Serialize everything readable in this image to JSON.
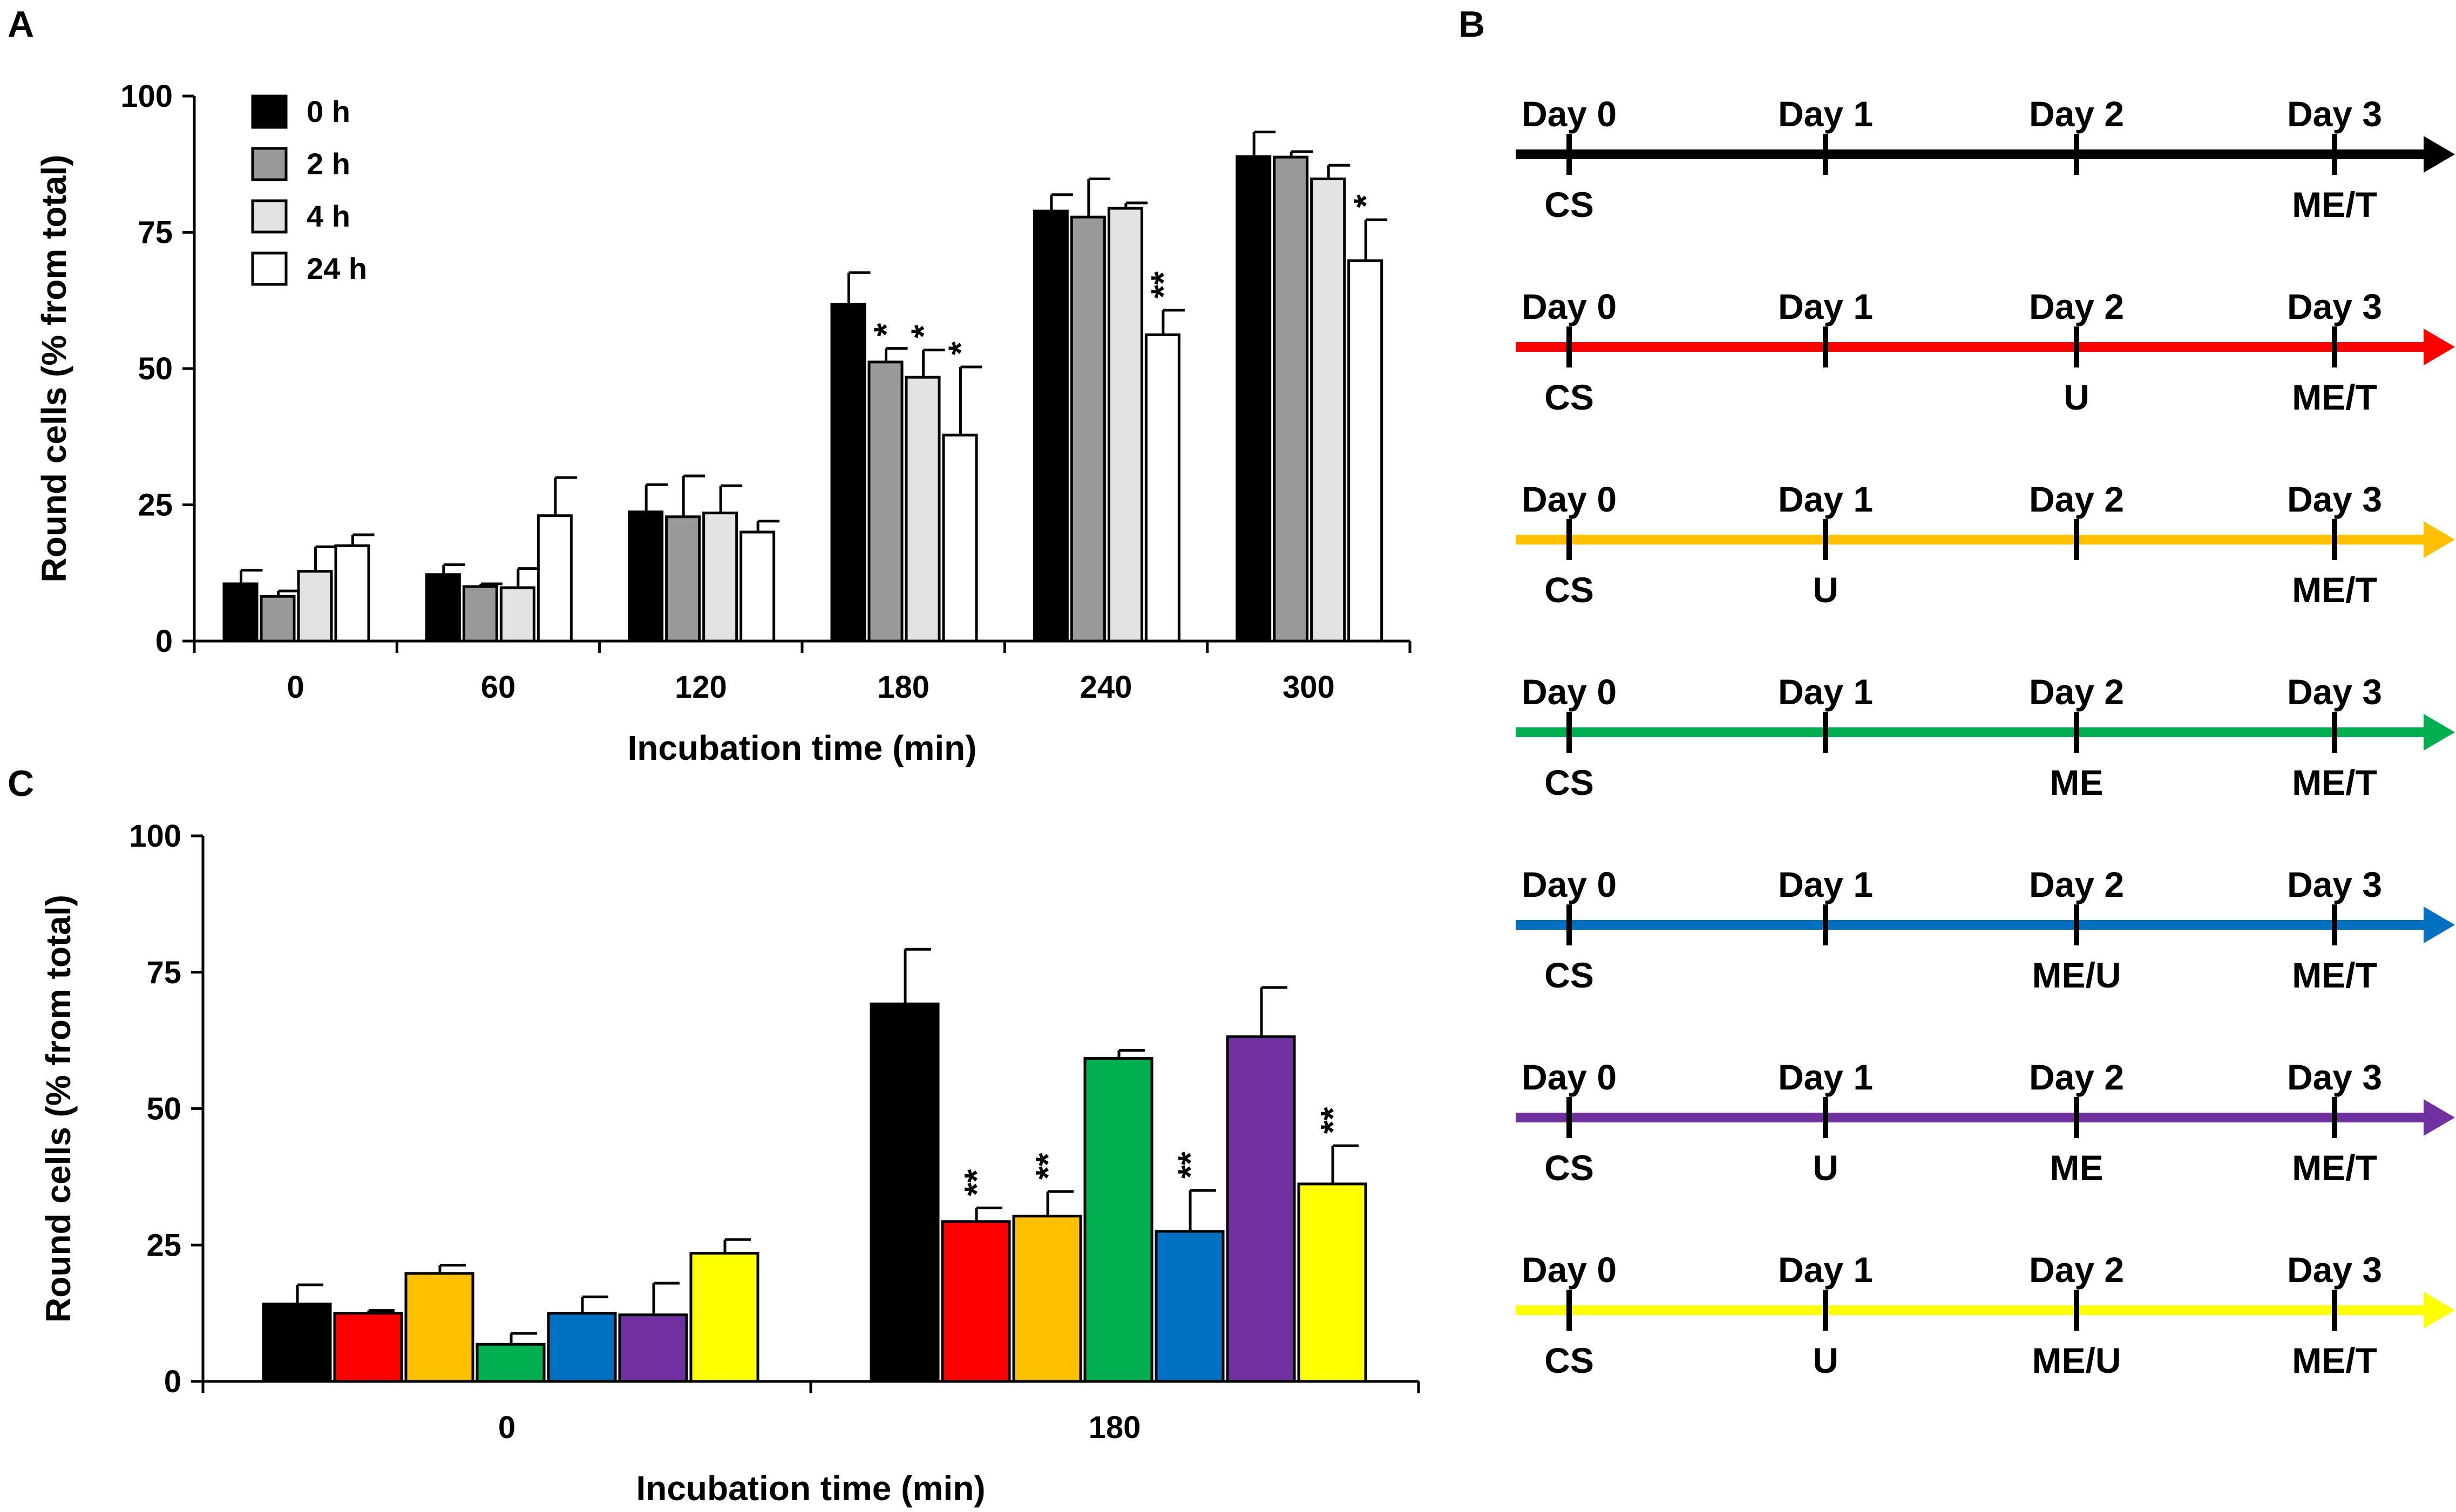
{
  "panels": {
    "a": "A",
    "b": "B",
    "c": "C"
  },
  "chart_data": [
    {
      "id": "panel-a",
      "type": "bar",
      "title": "",
      "xlabel": "Incubation time (min)",
      "ylabel": "Round cells (% from total)",
      "ylim": [
        0,
        100
      ],
      "yticks": [
        "0",
        "25",
        "50",
        "75",
        "100"
      ],
      "categories": [
        "0",
        "60",
        "120",
        "180",
        "240",
        "300"
      ],
      "legend_position": "top-left",
      "series": [
        {
          "name": "0 h",
          "color": "#000000",
          "values": [
            10.5,
            12.2,
            23.7,
            61.8,
            78.9,
            88.9
          ],
          "errors": [
            2.5,
            1.8,
            5.0,
            5.8,
            3.0,
            4.5
          ],
          "sig": [
            "",
            "",
            "",
            "",
            "",
            ""
          ]
        },
        {
          "name": "2 h",
          "color": "#999999",
          "values": [
            8.2,
            10.0,
            22.8,
            51.2,
            77.8,
            88.8
          ],
          "errors": [
            1.0,
            0.5,
            7.5,
            2.5,
            7.0,
            1.0
          ],
          "sig": [
            "",
            "",
            "",
            "*",
            "",
            ""
          ]
        },
        {
          "name": "4 h",
          "color": "#e3e3e3",
          "values": [
            12.8,
            9.8,
            23.5,
            48.4,
            79.4,
            84.8
          ],
          "errors": [
            4.5,
            3.5,
            5.0,
            5.0,
            1.0,
            2.5
          ],
          "sig": [
            "",
            "",
            "",
            "*",
            "",
            ""
          ]
        },
        {
          "name": "24 h",
          "color": "#ffffff",
          "values": [
            17.5,
            23.0,
            20.0,
            37.8,
            56.2,
            69.8
          ],
          "errors": [
            2.0,
            7.0,
            2.0,
            12.5,
            4.5,
            7.5
          ],
          "sig": [
            "",
            "",
            "",
            "*",
            "**",
            "*"
          ]
        }
      ]
    },
    {
      "id": "panel-c",
      "type": "bar",
      "title": "",
      "xlabel": "Incubation time (min)",
      "ylabel": "Round cells (% from total)",
      "ylim": [
        0,
        100
      ],
      "yticks": [
        "0",
        "25",
        "50",
        "75",
        "100"
      ],
      "categories": [
        "0",
        "180"
      ],
      "series": [
        {
          "name": "black",
          "color": "#000000",
          "values": [
            14.2,
            69.2
          ],
          "errors": [
            3.5,
            10.0
          ],
          "sig": [
            "",
            ""
          ]
        },
        {
          "name": "red",
          "color": "#ff0000",
          "values": [
            12.5,
            29.3
          ],
          "errors": [
            0.5,
            2.5
          ],
          "sig": [
            "",
            "**"
          ]
        },
        {
          "name": "orange",
          "color": "#ffc000",
          "values": [
            19.8,
            30.3
          ],
          "errors": [
            1.5,
            4.5
          ],
          "sig": [
            "",
            "**"
          ]
        },
        {
          "name": "green",
          "color": "#00b050",
          "values": [
            6.8,
            59.2
          ],
          "errors": [
            2.0,
            1.5
          ],
          "sig": [
            "",
            ""
          ]
        },
        {
          "name": "blue",
          "color": "#0070c0",
          "values": [
            12.5,
            27.5
          ],
          "errors": [
            3.0,
            7.5
          ],
          "sig": [
            "",
            "**"
          ]
        },
        {
          "name": "purple",
          "color": "#7030a0",
          "values": [
            12.2,
            63.2
          ],
          "errors": [
            5.8,
            9.0
          ],
          "sig": [
            "",
            ""
          ]
        },
        {
          "name": "yellow",
          "color": "#ffff00",
          "values": [
            23.5,
            36.2
          ],
          "errors": [
            2.5,
            7.0
          ],
          "sig": [
            "",
            "**"
          ]
        }
      ]
    }
  ],
  "timelines": [
    {
      "color": "#000000",
      "days": [
        "Day 0",
        "Day 1",
        "Day 2",
        "Day 3"
      ],
      "below": [
        "CS",
        "",
        "",
        "ME/T"
      ]
    },
    {
      "color": "#ff0000",
      "days": [
        "Day 0",
        "Day 1",
        "Day 2",
        "Day 3"
      ],
      "below": [
        "CS",
        "",
        "U",
        "ME/T"
      ]
    },
    {
      "color": "#ffc000",
      "days": [
        "Day 0",
        "Day 1",
        "Day 2",
        "Day 3"
      ],
      "below": [
        "CS",
        "U",
        "",
        "ME/T"
      ]
    },
    {
      "color": "#00b050",
      "days": [
        "Day 0",
        "Day 1",
        "Day 2",
        "Day 3"
      ],
      "below": [
        "CS",
        "",
        "ME",
        "ME/T"
      ]
    },
    {
      "color": "#0070c0",
      "days": [
        "Day 0",
        "Day 1",
        "Day 2",
        "Day 3"
      ],
      "below": [
        "CS",
        "",
        "ME/U",
        "ME/T"
      ]
    },
    {
      "color": "#7030a0",
      "days": [
        "Day 0",
        "Day 1",
        "Day 2",
        "Day 3"
      ],
      "below": [
        "CS",
        "U",
        "ME",
        "ME/T"
      ]
    },
    {
      "color": "#ffff00",
      "days": [
        "Day 0",
        "Day 1",
        "Day 2",
        "Day 3"
      ],
      "below": [
        "CS",
        "U",
        "ME/U",
        "ME/T"
      ]
    }
  ]
}
